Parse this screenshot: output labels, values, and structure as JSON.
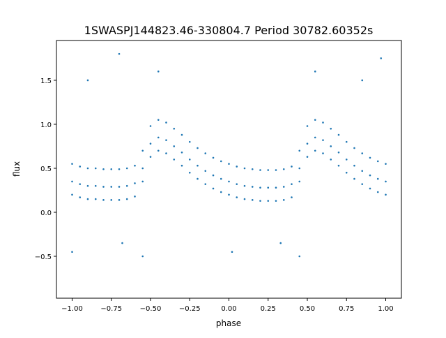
{
  "chart_data": {
    "type": "scatter",
    "title": "1SWASPJ144823.46-330804.7 Period 30782.60352s",
    "xlabel": "phase",
    "ylabel": "flux",
    "xlim": [
      -1.1,
      1.1
    ],
    "ylim": [
      -0.976,
      1.952
    ],
    "xticks": [
      -1.0,
      -0.75,
      -0.5,
      -0.25,
      0.0,
      0.25,
      0.5,
      0.75,
      1.0
    ],
    "xtick_labels": [
      "−1.00",
      "−0.75",
      "−0.50",
      "−0.25",
      "0.00",
      "0.25",
      "0.50",
      "0.75",
      "1.00"
    ],
    "yticks": [
      -0.5,
      0.0,
      0.5,
      1.0,
      1.5
    ],
    "ytick_labels": [
      "−0.5",
      "0.0",
      "0.5",
      "1.0",
      "1.5"
    ],
    "grid": false,
    "color": "#1f77b4",
    "x": [
      -1.0,
      -0.95,
      -0.9,
      -0.85,
      -0.8,
      -0.75,
      -0.7,
      -0.65,
      -0.6,
      -0.55,
      -0.5,
      -0.45,
      -0.4,
      -0.35,
      -0.3,
      -0.25,
      -0.2,
      -0.15,
      -0.1,
      -0.05,
      0.0,
      0.05,
      0.1,
      0.15,
      0.2,
      0.25,
      0.3,
      0.35,
      0.4,
      0.45,
      0.5,
      0.55,
      0.6,
      0.65,
      0.7,
      0.75,
      0.8,
      0.85,
      0.9,
      0.95,
      1.0
    ],
    "series": [
      {
        "values": [
          0.2,
          0.17,
          0.15,
          0.15,
          0.14,
          0.14,
          0.14,
          0.15,
          0.18,
          0.35,
          0.63,
          0.7,
          0.67,
          0.6,
          0.53,
          0.45,
          0.38,
          0.32,
          0.27,
          0.23,
          0.2,
          0.17,
          0.15,
          0.14,
          0.13,
          0.13,
          0.13,
          0.14,
          0.17,
          0.35,
          0.63,
          0.7,
          0.67,
          0.6,
          0.53,
          0.45,
          0.38,
          0.32,
          0.27,
          0.23,
          0.2
        ]
      },
      {
        "values": [
          0.35,
          0.32,
          0.3,
          0.3,
          0.29,
          0.29,
          0.29,
          0.3,
          0.33,
          0.5,
          0.78,
          0.85,
          0.82,
          0.75,
          0.68,
          0.6,
          0.53,
          0.47,
          0.42,
          0.38,
          0.35,
          0.32,
          0.3,
          0.29,
          0.28,
          0.28,
          0.28,
          0.29,
          0.32,
          0.5,
          0.78,
          0.85,
          0.82,
          0.75,
          0.68,
          0.6,
          0.53,
          0.47,
          0.42,
          0.38,
          0.35
        ]
      },
      {
        "values": [
          0.55,
          0.52,
          0.5,
          0.5,
          0.49,
          0.49,
          0.49,
          0.5,
          0.53,
          0.7,
          0.98,
          1.05,
          1.02,
          0.95,
          0.88,
          0.8,
          0.73,
          0.67,
          0.62,
          0.58,
          0.55,
          0.52,
          0.5,
          0.49,
          0.48,
          0.48,
          0.48,
          0.49,
          0.52,
          0.7,
          0.98,
          1.05,
          1.02,
          0.95,
          0.88,
          0.8,
          0.73,
          0.67,
          0.62,
          0.58,
          0.55
        ]
      }
    ],
    "outliers": {
      "x": [
        -0.68,
        -0.55,
        0.33,
        0.45,
        -0.7,
        0.97,
        -1.0,
        0.02,
        -0.45,
        0.55,
        -0.9,
        0.85
      ],
      "y": [
        -0.35,
        -0.5,
        -0.35,
        -0.5,
        1.8,
        1.75,
        -0.45,
        -0.45,
        1.6,
        1.6,
        1.5,
        1.5
      ]
    }
  }
}
